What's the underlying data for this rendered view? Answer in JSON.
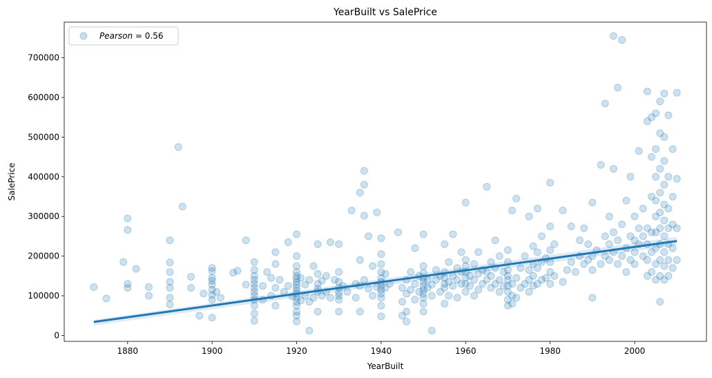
{
  "chart_data": {
    "type": "scatter",
    "title": "YearBuilt vs SalePrice",
    "xlabel": "YearBuilt",
    "ylabel": "SalePrice",
    "xlim": [
      1865,
      2017
    ],
    "ylim": [
      -15000,
      790000
    ],
    "xticks": [
      1880,
      1900,
      1920,
      1940,
      1960,
      1980,
      2000
    ],
    "yticks": [
      0,
      100000,
      200000,
      300000,
      400000,
      500000,
      600000,
      700000
    ],
    "grid": false,
    "legend": {
      "position": "top-left",
      "label_italic": "Pearson",
      "label_suffix": " = 0.56"
    },
    "point_color": "#1f77b4",
    "point_alpha": 0.22,
    "regression": {
      "x": [
        1872,
        2010
      ],
      "y": [
        34000,
        238000
      ]
    },
    "points": [
      [
        1872,
        122000
      ],
      [
        1875,
        93000
      ],
      [
        1879,
        185000
      ],
      [
        1880,
        120000
      ],
      [
        1880,
        130000
      ],
      [
        1880,
        266000
      ],
      [
        1880,
        295000
      ],
      [
        1882,
        168000
      ],
      [
        1885,
        100000
      ],
      [
        1885,
        122000
      ],
      [
        1890,
        78000
      ],
      [
        1890,
        95000
      ],
      [
        1890,
        120000
      ],
      [
        1890,
        135000
      ],
      [
        1890,
        160000
      ],
      [
        1890,
        184000
      ],
      [
        1890,
        240000
      ],
      [
        1892,
        475000
      ],
      [
        1893,
        325000
      ],
      [
        1895,
        120000
      ],
      [
        1895,
        148000
      ],
      [
        1897,
        50000
      ],
      [
        1898,
        106000
      ],
      [
        1900,
        45000
      ],
      [
        1900,
        90000
      ],
      [
        1900,
        102000
      ],
      [
        1900,
        115000
      ],
      [
        1900,
        128000
      ],
      [
        1900,
        138000
      ],
      [
        1900,
        145000
      ],
      [
        1900,
        162000
      ],
      [
        1900,
        170000
      ],
      [
        1901,
        110000
      ],
      [
        1902,
        95000
      ],
      [
        1905,
        158000
      ],
      [
        1906,
        163000
      ],
      [
        1908,
        128000
      ],
      [
        1908,
        240000
      ],
      [
        1910,
        37000
      ],
      [
        1910,
        55000
      ],
      [
        1910,
        75000
      ],
      [
        1910,
        90000
      ],
      [
        1910,
        100000
      ],
      [
        1910,
        110000
      ],
      [
        1910,
        120000
      ],
      [
        1910,
        130000
      ],
      [
        1910,
        140000
      ],
      [
        1910,
        150000
      ],
      [
        1910,
        165000
      ],
      [
        1910,
        185000
      ],
      [
        1912,
        90000
      ],
      [
        1912,
        125000
      ],
      [
        1913,
        160000
      ],
      [
        1914,
        100000
      ],
      [
        1914,
        145000
      ],
      [
        1915,
        75000
      ],
      [
        1915,
        120000
      ],
      [
        1915,
        180000
      ],
      [
        1915,
        210000
      ],
      [
        1916,
        140000
      ],
      [
        1917,
        110000
      ],
      [
        1918,
        125000
      ],
      [
        1918,
        235000
      ],
      [
        1919,
        98000
      ],
      [
        1920,
        35000
      ],
      [
        1920,
        50000
      ],
      [
        1920,
        60000
      ],
      [
        1920,
        75000
      ],
      [
        1920,
        85000
      ],
      [
        1920,
        95000
      ],
      [
        1920,
        105000
      ],
      [
        1920,
        112000
      ],
      [
        1920,
        120000
      ],
      [
        1920,
        128000
      ],
      [
        1920,
        135000
      ],
      [
        1920,
        143000
      ],
      [
        1920,
        150000
      ],
      [
        1920,
        160000
      ],
      [
        1920,
        175000
      ],
      [
        1920,
        200000
      ],
      [
        1920,
        255000
      ],
      [
        1921,
        88000
      ],
      [
        1921,
        145000
      ],
      [
        1922,
        100000
      ],
      [
        1922,
        128000
      ],
      [
        1923,
        12000
      ],
      [
        1923,
        85000
      ],
      [
        1923,
        140000
      ],
      [
        1924,
        95000
      ],
      [
        1924,
        175000
      ],
      [
        1925,
        60000
      ],
      [
        1925,
        110000
      ],
      [
        1925,
        118000
      ],
      [
        1925,
        130000
      ],
      [
        1925,
        155000
      ],
      [
        1925,
        230000
      ],
      [
        1926,
        100000
      ],
      [
        1926,
        138000
      ],
      [
        1927,
        150000
      ],
      [
        1927,
        110000
      ],
      [
        1928,
        235000
      ],
      [
        1928,
        95000
      ],
      [
        1929,
        140000
      ],
      [
        1930,
        60000
      ],
      [
        1930,
        90000
      ],
      [
        1930,
        100000
      ],
      [
        1930,
        108000
      ],
      [
        1930,
        120000
      ],
      [
        1930,
        135000
      ],
      [
        1930,
        160000
      ],
      [
        1930,
        230000
      ],
      [
        1931,
        125000
      ],
      [
        1932,
        110000
      ],
      [
        1933,
        315000
      ],
      [
        1934,
        130000
      ],
      [
        1934,
        95000
      ],
      [
        1935,
        360000
      ],
      [
        1935,
        190000
      ],
      [
        1935,
        125000
      ],
      [
        1935,
        60000
      ],
      [
        1936,
        415000
      ],
      [
        1936,
        302000
      ],
      [
        1936,
        380000
      ],
      [
        1936,
        140000
      ],
      [
        1937,
        250000
      ],
      [
        1937,
        118000
      ],
      [
        1938,
        100000
      ],
      [
        1938,
        175000
      ],
      [
        1939,
        310000
      ],
      [
        1939,
        122000
      ],
      [
        1940,
        48000
      ],
      [
        1940,
        75000
      ],
      [
        1940,
        95000
      ],
      [
        1940,
        105000
      ],
      [
        1940,
        115000
      ],
      [
        1940,
        125000
      ],
      [
        1940,
        135000
      ],
      [
        1940,
        145000
      ],
      [
        1940,
        160000
      ],
      [
        1940,
        180000
      ],
      [
        1940,
        205000
      ],
      [
        1940,
        245000
      ],
      [
        1941,
        120000
      ],
      [
        1941,
        155000
      ],
      [
        1942,
        130000
      ],
      [
        1944,
        260000
      ],
      [
        1945,
        50000
      ],
      [
        1945,
        85000
      ],
      [
        1945,
        120000
      ],
      [
        1946,
        60000
      ],
      [
        1946,
        105000
      ],
      [
        1946,
        140000
      ],
      [
        1946,
        35000
      ],
      [
        1947,
        115000
      ],
      [
        1947,
        160000
      ],
      [
        1948,
        90000
      ],
      [
        1948,
        130000
      ],
      [
        1948,
        220000
      ],
      [
        1949,
        110000
      ],
      [
        1949,
        150000
      ],
      [
        1950,
        60000
      ],
      [
        1950,
        80000
      ],
      [
        1950,
        95000
      ],
      [
        1950,
        105000
      ],
      [
        1950,
        115000
      ],
      [
        1950,
        125000
      ],
      [
        1950,
        135000
      ],
      [
        1950,
        145000
      ],
      [
        1950,
        158000
      ],
      [
        1950,
        175000
      ],
      [
        1950,
        255000
      ],
      [
        1951,
        120000
      ],
      [
        1951,
        140000
      ],
      [
        1952,
        12000
      ],
      [
        1952,
        100000
      ],
      [
        1952,
        128000
      ],
      [
        1953,
        140000
      ],
      [
        1953,
        165000
      ],
      [
        1954,
        110000
      ],
      [
        1954,
        150000
      ],
      [
        1955,
        80000
      ],
      [
        1955,
        120000
      ],
      [
        1955,
        130000
      ],
      [
        1955,
        145000
      ],
      [
        1955,
        160000
      ],
      [
        1955,
        230000
      ],
      [
        1956,
        100000
      ],
      [
        1956,
        135000
      ],
      [
        1956,
        185000
      ],
      [
        1957,
        125000
      ],
      [
        1957,
        150000
      ],
      [
        1957,
        255000
      ],
      [
        1958,
        95000
      ],
      [
        1958,
        140000
      ],
      [
        1958,
        170000
      ],
      [
        1959,
        130000
      ],
      [
        1959,
        160000
      ],
      [
        1959,
        210000
      ],
      [
        1960,
        110000
      ],
      [
        1960,
        130000
      ],
      [
        1960,
        145000
      ],
      [
        1960,
        160000
      ],
      [
        1960,
        175000
      ],
      [
        1960,
        190000
      ],
      [
        1960,
        335000
      ],
      [
        1961,
        125000
      ],
      [
        1961,
        150000
      ],
      [
        1962,
        100000
      ],
      [
        1962,
        140000
      ],
      [
        1962,
        180000
      ],
      [
        1963,
        115000
      ],
      [
        1963,
        155000
      ],
      [
        1963,
        210000
      ],
      [
        1964,
        130000
      ],
      [
        1964,
        165000
      ],
      [
        1965,
        375000
      ],
      [
        1965,
        160000
      ],
      [
        1965,
        140000
      ],
      [
        1966,
        120000
      ],
      [
        1966,
        150000
      ],
      [
        1966,
        185000
      ],
      [
        1967,
        130000
      ],
      [
        1967,
        170000
      ],
      [
        1967,
        240000
      ],
      [
        1968,
        110000
      ],
      [
        1968,
        140000
      ],
      [
        1968,
        200000
      ],
      [
        1969,
        125000
      ],
      [
        1969,
        160000
      ],
      [
        1970,
        75000
      ],
      [
        1970,
        90000
      ],
      [
        1970,
        110000
      ],
      [
        1970,
        125000
      ],
      [
        1970,
        140000
      ],
      [
        1970,
        150000
      ],
      [
        1970,
        165000
      ],
      [
        1970,
        185000
      ],
      [
        1970,
        215000
      ],
      [
        1971,
        80000
      ],
      [
        1971,
        100000
      ],
      [
        1971,
        130000
      ],
      [
        1971,
        315000
      ],
      [
        1972,
        95000
      ],
      [
        1972,
        145000
      ],
      [
        1972,
        345000
      ],
      [
        1973,
        120000
      ],
      [
        1973,
        170000
      ],
      [
        1974,
        130000
      ],
      [
        1974,
        200000
      ],
      [
        1975,
        110000
      ],
      [
        1975,
        140000
      ],
      [
        1975,
        165000
      ],
      [
        1975,
        300000
      ],
      [
        1976,
        125000
      ],
      [
        1976,
        150000
      ],
      [
        1976,
        180000
      ],
      [
        1976,
        225000
      ],
      [
        1977,
        130000
      ],
      [
        1977,
        170000
      ],
      [
        1977,
        210000
      ],
      [
        1977,
        320000
      ],
      [
        1978,
        140000
      ],
      [
        1978,
        185000
      ],
      [
        1978,
        250000
      ],
      [
        1979,
        145000
      ],
      [
        1979,
        195000
      ],
      [
        1980,
        130000
      ],
      [
        1980,
        160000
      ],
      [
        1980,
        185000
      ],
      [
        1980,
        215000
      ],
      [
        1980,
        275000
      ],
      [
        1980,
        385000
      ],
      [
        1981,
        150000
      ],
      [
        1981,
        230000
      ],
      [
        1983,
        135000
      ],
      [
        1983,
        315000
      ],
      [
        1984,
        165000
      ],
      [
        1985,
        185000
      ],
      [
        1985,
        275000
      ],
      [
        1986,
        160000
      ],
      [
        1987,
        200000
      ],
      [
        1987,
        240000
      ],
      [
        1988,
        180000
      ],
      [
        1988,
        270000
      ],
      [
        1989,
        190000
      ],
      [
        1989,
        230000
      ],
      [
        1990,
        95000
      ],
      [
        1990,
        165000
      ],
      [
        1990,
        200000
      ],
      [
        1990,
        335000
      ],
      [
        1991,
        215000
      ],
      [
        1992,
        180000
      ],
      [
        1992,
        430000
      ],
      [
        1993,
        200000
      ],
      [
        1993,
        250000
      ],
      [
        1993,
        585000
      ],
      [
        1994,
        190000
      ],
      [
        1994,
        230000
      ],
      [
        1994,
        300000
      ],
      [
        1995,
        210000
      ],
      [
        1995,
        260000
      ],
      [
        1995,
        755000
      ],
      [
        1995,
        420000
      ],
      [
        1996,
        625000
      ],
      [
        1996,
        180000
      ],
      [
        1996,
        240000
      ],
      [
        1997,
        745000
      ],
      [
        1997,
        200000
      ],
      [
        1997,
        280000
      ],
      [
        1998,
        220000
      ],
      [
        1998,
        160000
      ],
      [
        1998,
        340000
      ],
      [
        1999,
        190000
      ],
      [
        1999,
        250000
      ],
      [
        1999,
        400000
      ],
      [
        2000,
        210000
      ],
      [
        2000,
        240000
      ],
      [
        2000,
        180000
      ],
      [
        2000,
        300000
      ],
      [
        2001,
        230000
      ],
      [
        2001,
        270000
      ],
      [
        2001,
        465000
      ],
      [
        2002,
        200000
      ],
      [
        2002,
        250000
      ],
      [
        2002,
        320000
      ],
      [
        2003,
        150000
      ],
      [
        2003,
        190000
      ],
      [
        2003,
        230000
      ],
      [
        2003,
        270000
      ],
      [
        2003,
        615000
      ],
      [
        2003,
        540000
      ],
      [
        2004,
        160000
      ],
      [
        2004,
        210000
      ],
      [
        2004,
        260000
      ],
      [
        2004,
        350000
      ],
      [
        2004,
        450000
      ],
      [
        2004,
        550000
      ],
      [
        2005,
        140000
      ],
      [
        2005,
        180000
      ],
      [
        2005,
        220000
      ],
      [
        2005,
        260000
      ],
      [
        2005,
        300000
      ],
      [
        2005,
        340000
      ],
      [
        2005,
        400000
      ],
      [
        2005,
        470000
      ],
      [
        2005,
        560000
      ],
      [
        2006,
        85000
      ],
      [
        2006,
        150000
      ],
      [
        2006,
        190000
      ],
      [
        2006,
        230000
      ],
      [
        2006,
        270000
      ],
      [
        2006,
        310000
      ],
      [
        2006,
        360000
      ],
      [
        2006,
        420000
      ],
      [
        2006,
        510000
      ],
      [
        2006,
        590000
      ],
      [
        2007,
        140000
      ],
      [
        2007,
        175000
      ],
      [
        2007,
        210000
      ],
      [
        2007,
        250000
      ],
      [
        2007,
        290000
      ],
      [
        2007,
        330000
      ],
      [
        2007,
        380000
      ],
      [
        2007,
        440000
      ],
      [
        2007,
        500000
      ],
      [
        2007,
        610000
      ],
      [
        2008,
        150000
      ],
      [
        2008,
        190000
      ],
      [
        2008,
        230000
      ],
      [
        2008,
        270000
      ],
      [
        2008,
        320000
      ],
      [
        2008,
        400000
      ],
      [
        2008,
        555000
      ],
      [
        2009,
        170000
      ],
      [
        2009,
        220000
      ],
      [
        2009,
        280000
      ],
      [
        2009,
        350000
      ],
      [
        2009,
        470000
      ],
      [
        2010,
        190000
      ],
      [
        2010,
        270000
      ],
      [
        2010,
        395000
      ],
      [
        2010,
        612000
      ]
    ]
  }
}
